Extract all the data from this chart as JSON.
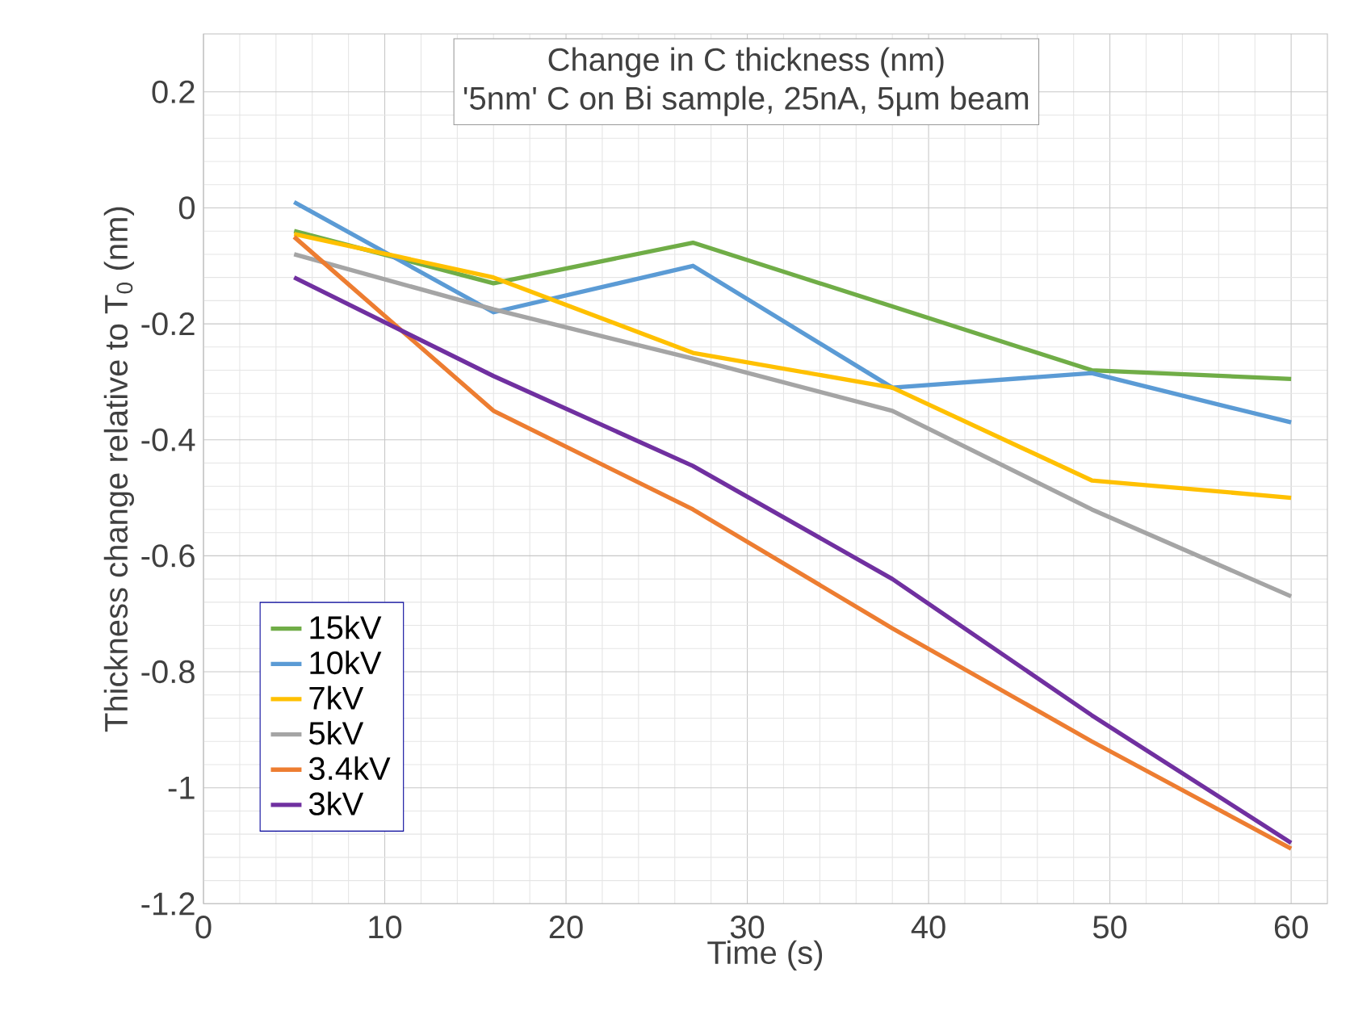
{
  "chart_data": {
    "type": "line",
    "title": "Change in C thickness (nm)",
    "subtitle": "'5nm' C on Bi sample, 25nA, 5µm beam",
    "xlabel": "Time (s)",
    "ylabel": "Thickness change relative to T$_{0}$ (nm)",
    "x": [
      5,
      16,
      27,
      38,
      49,
      60
    ],
    "series": [
      {
        "name": "15kV",
        "color": "#70ad47",
        "values": [
          -0.04,
          -0.13,
          -0.06,
          -0.17,
          -0.28,
          -0.295
        ]
      },
      {
        "name": "10kV",
        "color": "#5b9bd5",
        "values": [
          0.01,
          -0.18,
          -0.1,
          -0.31,
          -0.285,
          -0.37
        ]
      },
      {
        "name": "7kV",
        "color": "#ffc000",
        "values": [
          -0.045,
          -0.12,
          -0.25,
          -0.31,
          -0.47,
          -0.5
        ]
      },
      {
        "name": "5kV",
        "color": "#a5a5a5",
        "values": [
          -0.08,
          -0.175,
          -0.26,
          -0.35,
          -0.52,
          -0.67
        ]
      },
      {
        "name": "3.4kV",
        "color": "#ed7d31",
        "values": [
          -0.05,
          -0.35,
          -0.52,
          -0.725,
          -0.92,
          -1.105
        ]
      },
      {
        "name": "3kV",
        "color": "#7030a0",
        "values": [
          -0.12,
          -0.29,
          -0.445,
          -0.64,
          -0.875,
          -1.095
        ]
      }
    ],
    "xlim": [
      0,
      62
    ],
    "xticks": [
      0,
      10,
      20,
      30,
      40,
      50,
      60
    ],
    "ylim": [
      -1.2,
      0.3
    ],
    "yticks": [
      -1.2,
      -1,
      -0.8,
      -0.6,
      -0.4,
      -0.2,
      0,
      0.2
    ],
    "grid": true,
    "legend": "left",
    "marker": "none",
    "line_style": "solid"
  }
}
